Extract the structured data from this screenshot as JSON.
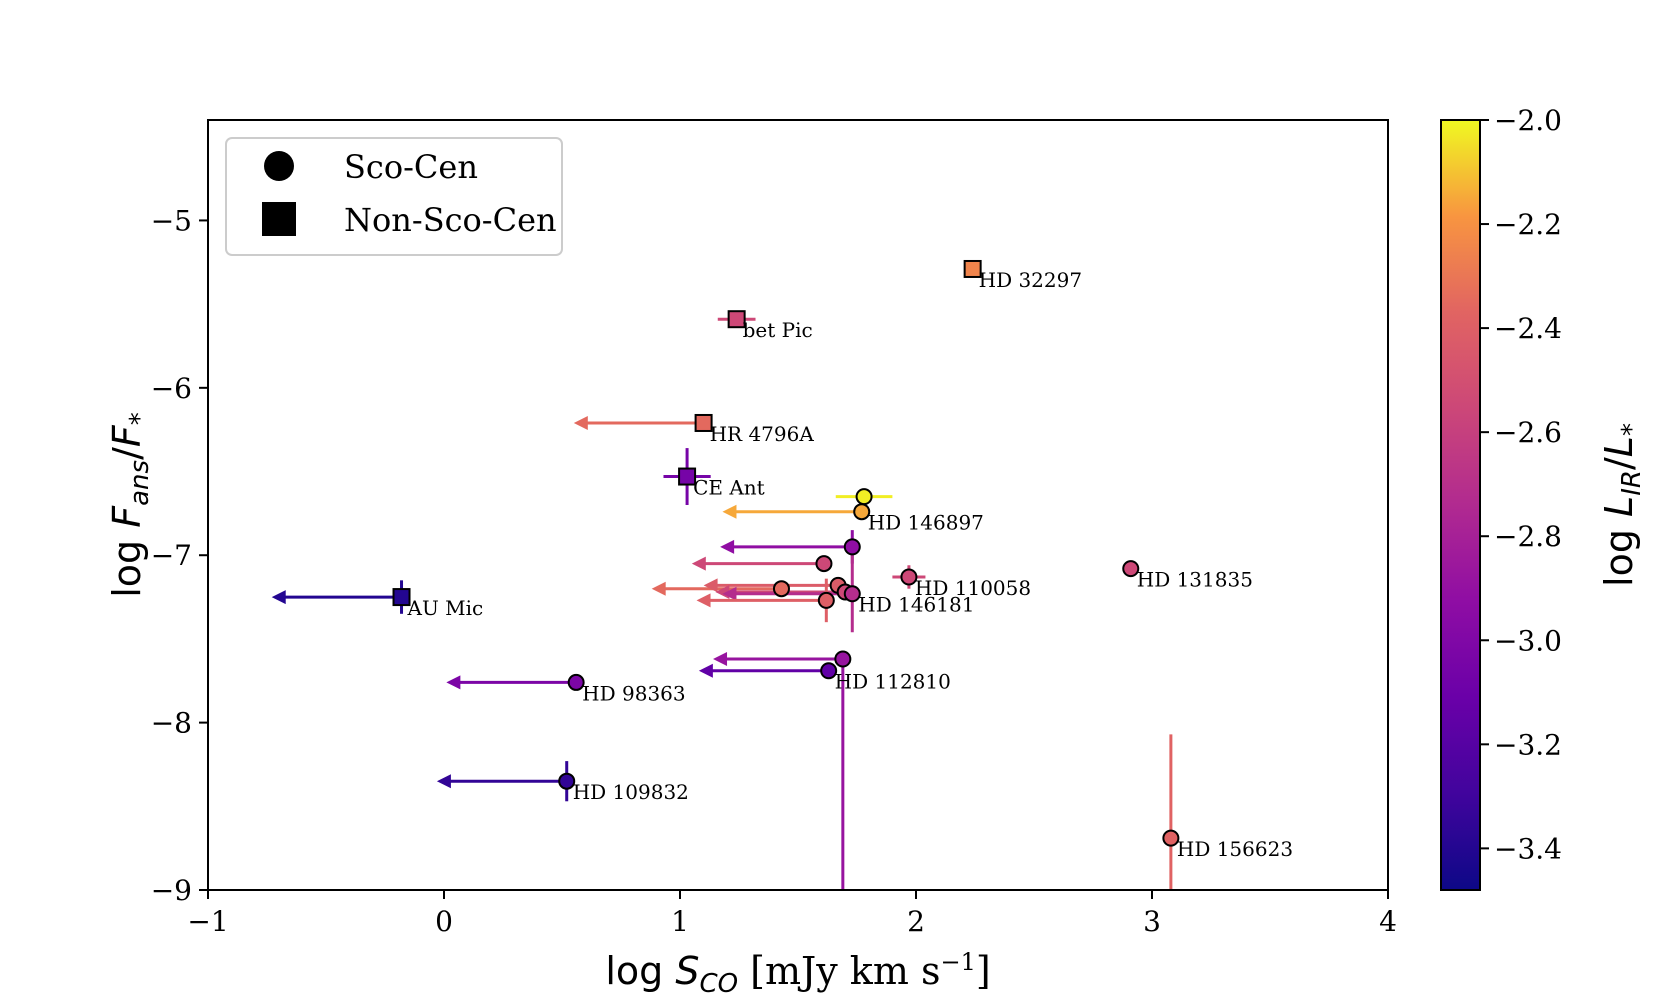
{
  "chart_data": {
    "type": "scatter",
    "xlabel": "log S_CO [mJy km s^-1]",
    "ylabel": "log F_ans/F_*",
    "xlim": [
      -1,
      4
    ],
    "ylim": [
      -9,
      -4.4
    ],
    "x_ticks": [
      {
        "value": -1,
        "label": "−1"
      },
      {
        "value": 0,
        "label": "0"
      },
      {
        "value": 1,
        "label": "1"
      },
      {
        "value": 2,
        "label": "2"
      },
      {
        "value": 3,
        "label": "3"
      },
      {
        "value": 4,
        "label": "4"
      }
    ],
    "y_ticks": [
      {
        "value": -5,
        "label": "−5"
      },
      {
        "value": -6,
        "label": "−6"
      },
      {
        "value": -7,
        "label": "−7"
      },
      {
        "value": -8,
        "label": "−8"
      },
      {
        "value": -9,
        "label": "−9"
      }
    ],
    "colorbar": {
      "label": "log L_IR/L_*",
      "colormap": "plasma",
      "range": [
        -3.48,
        -2.0
      ],
      "ticks": [
        {
          "value": -2.0,
          "label": "−2.0"
        },
        {
          "value": -2.2,
          "label": "−2.2"
        },
        {
          "value": -2.4,
          "label": "−2.4"
        },
        {
          "value": -2.6,
          "label": "−2.6"
        },
        {
          "value": -2.8,
          "label": "−2.8"
        },
        {
          "value": -3.0,
          "label": "−3.0"
        },
        {
          "value": -3.2,
          "label": "−3.2"
        },
        {
          "value": -3.4,
          "label": "−3.4"
        }
      ]
    },
    "legend": {
      "placement": "upper-left",
      "entries": [
        {
          "marker": "circle",
          "label": "Sco-Cen"
        },
        {
          "marker": "square",
          "label": "Non-Sco-Cen"
        }
      ]
    },
    "points": [
      {
        "x": 2.24,
        "y": -5.29,
        "c": -2.25,
        "marker": "square",
        "label": "HD 32297"
      },
      {
        "x": 1.24,
        "y": -5.59,
        "c": -2.55,
        "marker": "square",
        "label": "bet Pic",
        "xerr": 0.08,
        "yerr": 0.03
      },
      {
        "x": 1.1,
        "y": -6.21,
        "c": -2.35,
        "marker": "square",
        "label": "HR 4796A",
        "upper_limit_x_to": 0.55
      },
      {
        "x": 1.03,
        "y": -6.53,
        "c": -3.05,
        "marker": "square",
        "label": "CE Ant",
        "xerr": 0.1,
        "yerr": 0.17
      },
      {
        "x": 1.78,
        "y": -6.65,
        "c": -2.02,
        "marker": "circle",
        "label": "",
        "xerr": 0.12
      },
      {
        "x": 1.77,
        "y": -6.74,
        "c": -2.15,
        "marker": "circle",
        "label": "HD 146897",
        "upper_limit_x_to": 1.18
      },
      {
        "x": 1.73,
        "y": -6.95,
        "c": -2.92,
        "marker": "circle",
        "label": "",
        "upper_limit_x_to": 1.17,
        "yerr": 0.1
      },
      {
        "x": 1.61,
        "y": -7.05,
        "c": -2.55,
        "marker": "circle",
        "label": "",
        "upper_limit_x_to": 1.05
      },
      {
        "x": 1.97,
        "y": -7.13,
        "c": -2.55,
        "marker": "circle",
        "label": "HD 110058",
        "xerr": 0.07,
        "yerr": 0.07
      },
      {
        "x": 1.43,
        "y": -7.2,
        "c": -2.35,
        "marker": "circle",
        "label": "",
        "upper_limit_x_to": 0.88
      },
      {
        "x": 1.67,
        "y": -7.18,
        "c": -2.42,
        "marker": "circle",
        "label": "",
        "upper_limit_x_to": 1.1
      },
      {
        "x": 1.7,
        "y": -7.22,
        "c": -2.55,
        "marker": "circle",
        "label": "",
        "upper_limit_x_to": 1.15
      },
      {
        "x": 1.73,
        "y": -7.23,
        "c": -2.72,
        "marker": "circle",
        "label": "HD 146181",
        "upper_limit_x_to": 1.18,
        "yerr": 0.23
      },
      {
        "x": 1.62,
        "y": -7.27,
        "c": -2.4,
        "marker": "circle",
        "label": "",
        "upper_limit_x_to": 1.07,
        "yerr": 0.13
      },
      {
        "x": 2.91,
        "y": -7.08,
        "c": -2.55,
        "marker": "circle",
        "label": "HD 131835"
      },
      {
        "x": -0.18,
        "y": -7.25,
        "c": -3.4,
        "marker": "square",
        "label": "AU Mic",
        "upper_limit_x_to": -0.73,
        "yerr": 0.1
      },
      {
        "x": 1.69,
        "y": -7.62,
        "c": -2.88,
        "marker": "circle",
        "label": "",
        "upper_limit_x_to": 1.14,
        "yerr_low": 1.38
      },
      {
        "x": 1.63,
        "y": -7.69,
        "c": -3.15,
        "marker": "circle",
        "label": "HD 112810",
        "upper_limit_x_to": 1.08
      },
      {
        "x": 0.56,
        "y": -7.76,
        "c": -3.02,
        "marker": "circle",
        "label": "HD 98363",
        "upper_limit_x_to": 0.01
      },
      {
        "x": 0.52,
        "y": -8.35,
        "c": -3.35,
        "marker": "circle",
        "label": "HD 109832",
        "upper_limit_x_to": -0.03,
        "yerr": 0.12
      },
      {
        "x": 3.08,
        "y": -8.69,
        "c": -2.38,
        "marker": "circle",
        "label": "HD 156623",
        "yerr_high": 0.62,
        "yerr_low": 0.31
      }
    ]
  }
}
